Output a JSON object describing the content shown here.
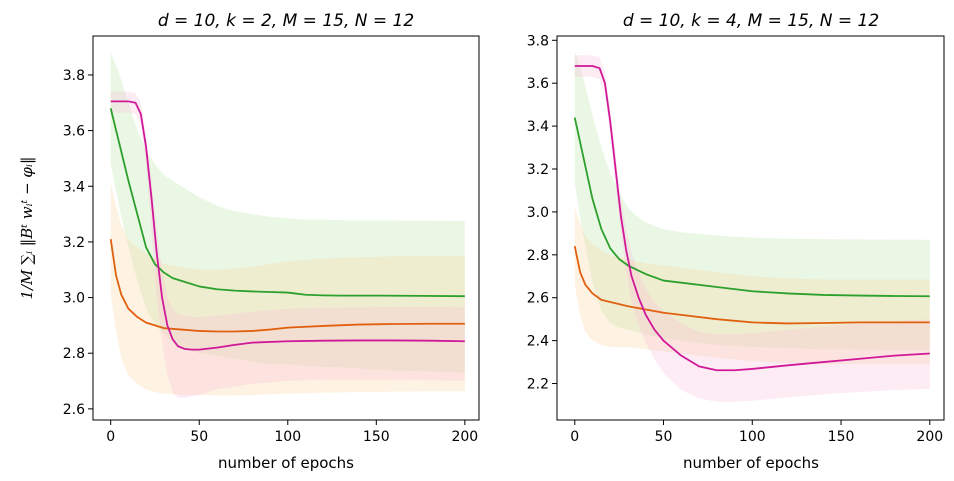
{
  "ylabel": "1/M ∑ᵢ ‖Bᵗ wᵢᵗ − φᵢ‖",
  "chart_data": [
    {
      "type": "line",
      "title": "d = 10, k = 2, M = 15, N = 12",
      "xlabel": "number of epochs",
      "xlim": [
        -10,
        208
      ],
      "ylim": [
        2.56,
        3.94
      ],
      "xticks": [
        0,
        50,
        100,
        150,
        200
      ],
      "yticks": [
        2.6,
        2.8,
        3.0,
        3.2,
        3.4,
        3.6,
        3.8
      ],
      "series": [
        {
          "name": "green",
          "color": "#2ca02c",
          "band_color": "#b8e5a8",
          "x": [
            0,
            5,
            10,
            15,
            20,
            25,
            30,
            35,
            40,
            50,
            60,
            70,
            80,
            90,
            100,
            110,
            120,
            130,
            150,
            175,
            200
          ],
          "values": [
            3.68,
            3.55,
            3.42,
            3.3,
            3.18,
            3.12,
            3.09,
            3.07,
            3.06,
            3.04,
            3.03,
            3.025,
            3.022,
            3.02,
            3.018,
            3.01,
            3.008,
            3.007,
            3.007,
            3.006,
            3.005
          ],
          "upper": [
            3.88,
            3.8,
            3.7,
            3.6,
            3.53,
            3.48,
            3.44,
            3.42,
            3.4,
            3.36,
            3.33,
            3.31,
            3.3,
            3.29,
            3.285,
            3.28,
            3.28,
            3.278,
            3.278,
            3.276,
            3.275
          ],
          "lower": [
            3.48,
            3.32,
            3.18,
            3.06,
            2.96,
            2.9,
            2.87,
            2.84,
            2.82,
            2.8,
            2.79,
            2.78,
            2.77,
            2.76,
            2.76,
            2.755,
            2.75,
            2.75,
            2.74,
            2.735,
            2.73
          ]
        },
        {
          "name": "orange",
          "color": "#e06010",
          "band_color": "#fdd7a0",
          "x": [
            0,
            3,
            6,
            10,
            15,
            20,
            25,
            30,
            40,
            50,
            60,
            70,
            80,
            90,
            100,
            120,
            140,
            160,
            180,
            200
          ],
          "values": [
            3.21,
            3.08,
            3.01,
            2.96,
            2.93,
            2.91,
            2.9,
            2.89,
            2.885,
            2.88,
            2.878,
            2.878,
            2.88,
            2.885,
            2.892,
            2.898,
            2.903,
            2.905,
            2.906,
            2.906
          ],
          "upper": [
            3.41,
            3.33,
            3.26,
            3.21,
            3.18,
            3.16,
            3.14,
            3.12,
            3.11,
            3.1,
            3.1,
            3.105,
            3.11,
            3.12,
            3.13,
            3.14,
            3.145,
            3.148,
            3.15,
            3.15
          ],
          "lower": [
            3.01,
            2.88,
            2.78,
            2.72,
            2.69,
            2.67,
            2.66,
            2.655,
            2.65,
            2.65,
            2.648,
            2.648,
            2.65,
            2.652,
            2.655,
            2.658,
            2.66,
            2.662,
            2.663,
            2.663
          ]
        },
        {
          "name": "magenta",
          "color": "#d01898",
          "band_color": "#f8c0d8",
          "x": [
            0,
            5,
            10,
            14,
            17,
            20,
            23,
            26,
            29,
            32,
            35,
            38,
            42,
            46,
            50,
            60,
            70,
            80,
            100,
            120,
            140,
            160,
            180,
            200
          ],
          "values": [
            3.705,
            3.705,
            3.705,
            3.7,
            3.66,
            3.54,
            3.36,
            3.16,
            3.0,
            2.9,
            2.85,
            2.825,
            2.815,
            2.813,
            2.813,
            2.82,
            2.83,
            2.838,
            2.843,
            2.845,
            2.846,
            2.846,
            2.845,
            2.843
          ],
          "upper": [
            3.74,
            3.74,
            3.74,
            3.735,
            3.7,
            3.58,
            3.42,
            3.24,
            3.1,
            3.0,
            2.96,
            2.94,
            2.935,
            2.93,
            2.93,
            2.935,
            2.942,
            2.95,
            2.96,
            2.963,
            2.965,
            2.966,
            2.966,
            2.965
          ],
          "lower": [
            3.665,
            3.665,
            3.665,
            3.66,
            3.62,
            3.48,
            3.24,
            3.0,
            2.84,
            2.72,
            2.66,
            2.64,
            2.64,
            2.645,
            2.65,
            2.67,
            2.68,
            2.69,
            2.7,
            2.705,
            2.705,
            2.705,
            2.703,
            2.7
          ]
        }
      ]
    },
    {
      "type": "line",
      "title": "d = 10, k = 4, M = 15, N = 12",
      "xlabel": "number of epochs",
      "xlim": [
        -10,
        208
      ],
      "ylim": [
        2.03,
        3.82
      ],
      "xticks": [
        0,
        50,
        100,
        150,
        200
      ],
      "yticks": [
        2.2,
        2.4,
        2.6,
        2.8,
        3.0,
        3.2,
        3.4,
        3.6,
        3.8
      ],
      "series": [
        {
          "name": "green",
          "color": "#2ca02c",
          "band_color": "#b8e5a8",
          "x": [
            0,
            5,
            10,
            15,
            20,
            25,
            30,
            35,
            40,
            50,
            60,
            80,
            100,
            120,
            140,
            160,
            180,
            200
          ],
          "values": [
            3.44,
            3.25,
            3.06,
            2.92,
            2.83,
            2.78,
            2.75,
            2.73,
            2.71,
            2.68,
            2.67,
            2.65,
            2.63,
            2.62,
            2.613,
            2.61,
            2.608,
            2.607
          ],
          "upper": [
            3.75,
            3.62,
            3.45,
            3.3,
            3.18,
            3.09,
            3.02,
            2.98,
            2.95,
            2.92,
            2.905,
            2.89,
            2.88,
            2.875,
            2.873,
            2.872,
            2.871,
            2.87
          ],
          "lower": [
            3.13,
            2.88,
            2.67,
            2.54,
            2.48,
            2.46,
            2.45,
            2.44,
            2.43,
            2.41,
            2.4,
            2.38,
            2.37,
            2.365,
            2.36,
            2.358,
            2.356,
            2.355
          ]
        },
        {
          "name": "orange",
          "color": "#e06010",
          "band_color": "#fdd7a0",
          "x": [
            0,
            3,
            6,
            10,
            15,
            20,
            25,
            30,
            40,
            50,
            60,
            80,
            100,
            120,
            140,
            160,
            180,
            200
          ],
          "values": [
            2.84,
            2.72,
            2.66,
            2.62,
            2.59,
            2.58,
            2.57,
            2.56,
            2.545,
            2.53,
            2.52,
            2.5,
            2.485,
            2.48,
            2.482,
            2.485,
            2.485,
            2.485
          ],
          "upper": [
            3.02,
            2.95,
            2.89,
            2.85,
            2.82,
            2.8,
            2.79,
            2.78,
            2.76,
            2.75,
            2.74,
            2.72,
            2.7,
            2.69,
            2.685,
            2.685,
            2.685,
            2.685
          ],
          "lower": [
            2.66,
            2.52,
            2.44,
            2.4,
            2.38,
            2.37,
            2.37,
            2.37,
            2.36,
            2.35,
            2.34,
            2.32,
            2.305,
            2.295,
            2.29,
            2.29,
            2.29,
            2.29
          ]
        },
        {
          "name": "magenta",
          "color": "#d01898",
          "band_color": "#f8c0d8",
          "x": [
            0,
            5,
            10,
            14,
            17,
            20,
            23,
            26,
            29,
            32,
            36,
            40,
            45,
            50,
            60,
            70,
            80,
            90,
            100,
            120,
            140,
            160,
            180,
            200
          ],
          "values": [
            3.68,
            3.68,
            3.68,
            3.67,
            3.6,
            3.42,
            3.2,
            2.98,
            2.82,
            2.7,
            2.6,
            2.52,
            2.45,
            2.4,
            2.33,
            2.28,
            2.262,
            2.262,
            2.268,
            2.285,
            2.3,
            2.315,
            2.33,
            2.34
          ],
          "upper": [
            3.73,
            3.73,
            3.73,
            3.72,
            3.65,
            3.48,
            3.27,
            3.06,
            2.92,
            2.81,
            2.72,
            2.64,
            2.58,
            2.54,
            2.48,
            2.44,
            2.43,
            2.43,
            2.435,
            2.45,
            2.465,
            2.48,
            2.49,
            2.5
          ],
          "lower": [
            3.63,
            3.63,
            3.63,
            3.62,
            3.55,
            3.36,
            3.12,
            2.9,
            2.72,
            2.58,
            2.47,
            2.39,
            2.31,
            2.25,
            2.17,
            2.13,
            2.115,
            2.115,
            2.12,
            2.135,
            2.15,
            2.16,
            2.17,
            2.175
          ]
        }
      ]
    }
  ]
}
